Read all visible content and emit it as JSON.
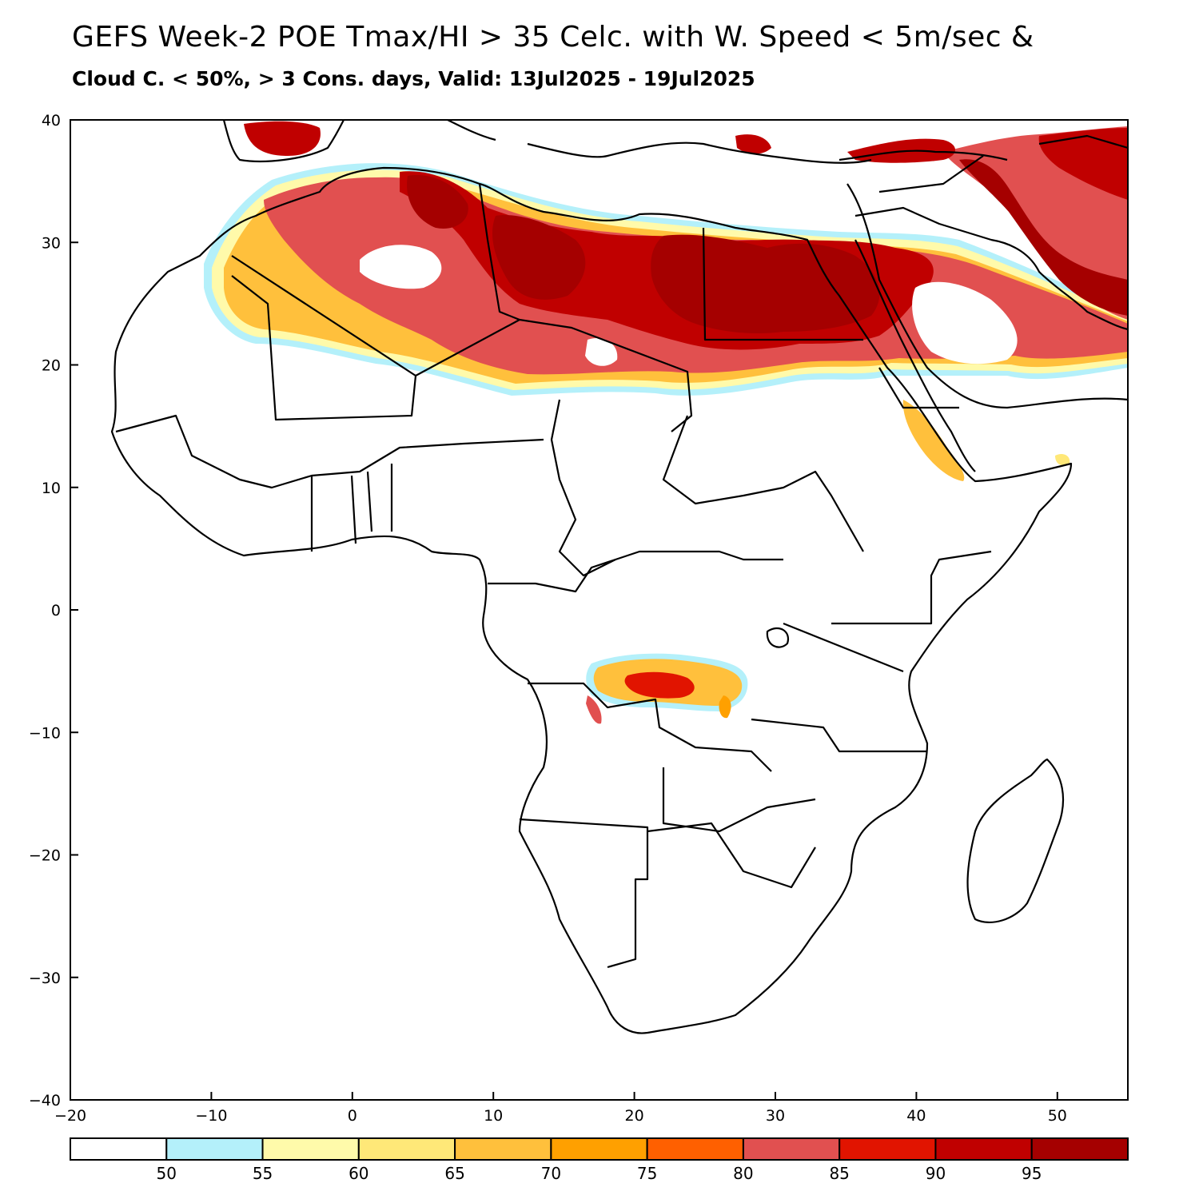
{
  "map": {
    "title_line1": "GEFS Week-2 POE Tmax/HI > 35 Celc. with W. Speed < 5m/sec &",
    "title_line2": "Cloud C. < 50%, > 3 Cons. days, Valid: 13Jul2025 - 19Jul2025",
    "region": "Africa / Middle East",
    "lon_range": [
      -20,
      55
    ],
    "lat_range": [
      -40,
      40
    ],
    "lon_ticks": [
      -20,
      -10,
      0,
      10,
      20,
      30,
      40,
      50
    ],
    "lat_ticks": [
      -40,
      -30,
      -20,
      -10,
      0,
      10,
      20,
      30,
      40
    ],
    "lon_tick_labels": [
      "−20",
      "−10",
      "0",
      "10",
      "20",
      "30",
      "40",
      "50"
    ],
    "lat_tick_labels": [
      "−40",
      "−30",
      "−20",
      "−10",
      "0",
      "10",
      "20",
      "30",
      "40"
    ]
  },
  "colorbar": {
    "levels": [
      50,
      55,
      60,
      65,
      70,
      75,
      80,
      85,
      90,
      95
    ],
    "level_labels": [
      "50",
      "55",
      "60",
      "65",
      "70",
      "75",
      "80",
      "85",
      "90",
      "95"
    ],
    "colors": [
      "#ffffff",
      "#b4f0fa",
      "#fffaaa",
      "#ffe878",
      "#ffc03c",
      "#ffa000",
      "#ff6000",
      "#e15050",
      "#e11400",
      "#c00000",
      "#a50000"
    ]
  }
}
